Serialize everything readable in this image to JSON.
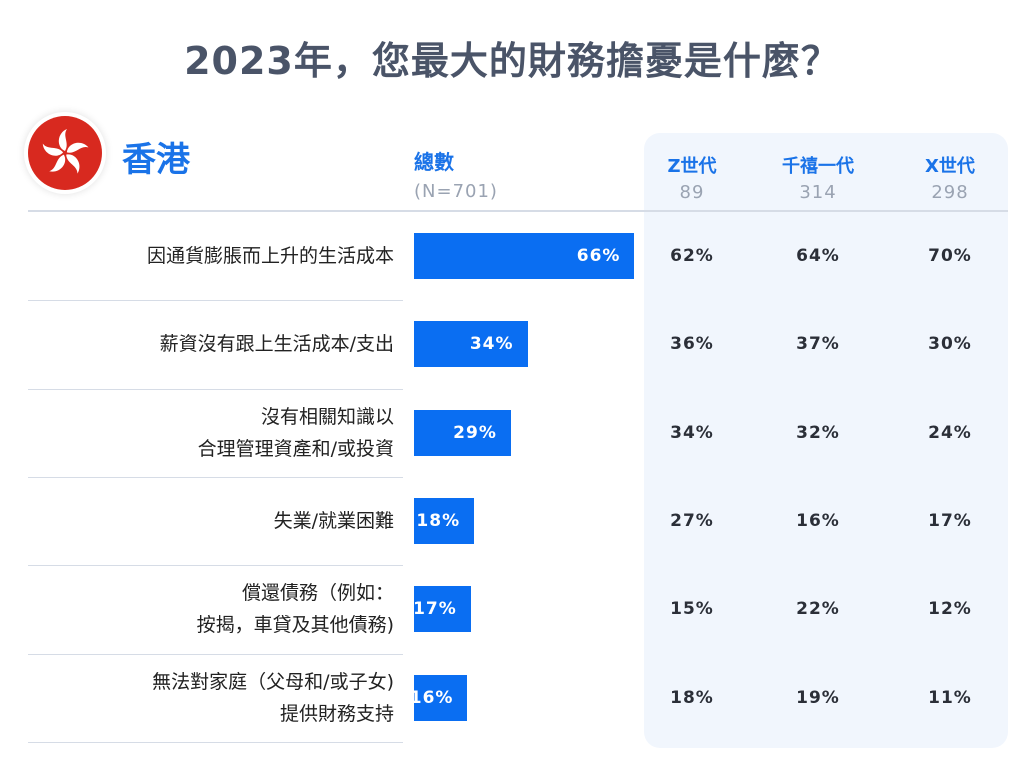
{
  "title": "2023年，您最大的財務擔憂是什麼？",
  "region": "香港",
  "colors": {
    "accent": "#1a73e8",
    "bar": "#0a6ef2",
    "flag": "#d8291f"
  },
  "icons": {
    "flag": "hong-kong-flag-icon"
  },
  "chart_data": {
    "type": "bar",
    "orientation": "horizontal",
    "title": "2023年，您最大的財務擔憂是什麼？",
    "total_column": {
      "name": "總數",
      "n_label": "(N=701)"
    },
    "categories": [
      [
        "因通貨膨脹而上升的生活成本"
      ],
      [
        "薪資沒有跟上生活成本/支出"
      ],
      [
        "沒有相關知識以",
        "合理管理資產和/或投資"
      ],
      [
        "失業/就業困難"
      ],
      [
        "償還債務（例如：",
        "按揭，車貸及其他債務)"
      ],
      [
        "無法對家庭（父母和/或子女)",
        "提供財務支持"
      ]
    ],
    "values": [
      66,
      34,
      29,
      18,
      17,
      16
    ],
    "value_labels": [
      "66%",
      "34%",
      "29%",
      "18%",
      "17%",
      "16%"
    ],
    "series": [
      {
        "name": "Z世代",
        "n": "89",
        "values": [
          "62%",
          "36%",
          "34%",
          "27%",
          "15%",
          "18%"
        ]
      },
      {
        "name": "千禧一代",
        "n": "314",
        "values": [
          "64%",
          "37%",
          "32%",
          "16%",
          "22%",
          "19%"
        ]
      },
      {
        "name": "X世代",
        "n": "298",
        "values": [
          "70%",
          "30%",
          "24%",
          "17%",
          "12%",
          "11%"
        ]
      }
    ],
    "xlim": [
      0,
      100
    ]
  }
}
